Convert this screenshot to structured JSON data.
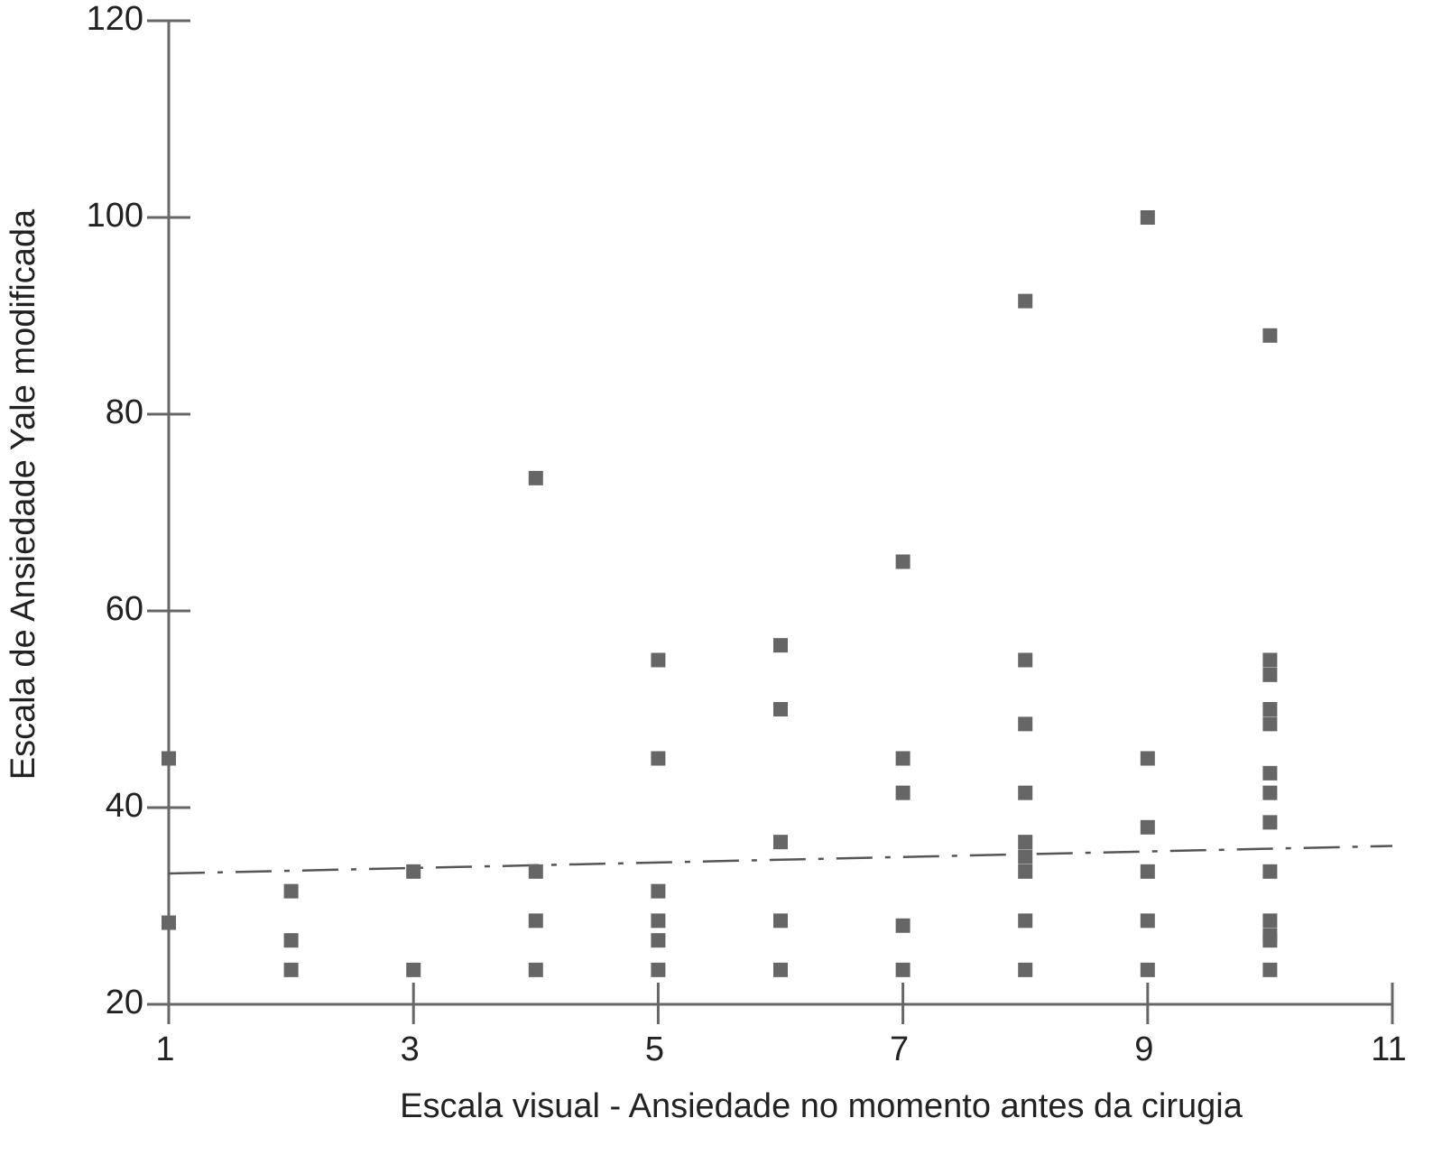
{
  "chart_data": {
    "type": "scatter",
    "xlabel": "Escala visual - Ansiedade no momento antes da cirugia",
    "ylabel": "Escala de Ansiedade Yale modificada",
    "xlim": [
      1,
      11
    ],
    "xticks": [
      1,
      3,
      5,
      7,
      9,
      11
    ],
    "ylim": [
      20,
      120
    ],
    "yticks": [
      20,
      40,
      60,
      80,
      100,
      120
    ],
    "series": [
      {
        "color": "#666666",
        "x": [
          1,
          1,
          2,
          2,
          2,
          3,
          3,
          4,
          4,
          4,
          4,
          5,
          5,
          5,
          5,
          5,
          5,
          6,
          6,
          6,
          6,
          6,
          7,
          7,
          7,
          7,
          7,
          8,
          8,
          8,
          8,
          8,
          8,
          8,
          8,
          8,
          9,
          9,
          9,
          9,
          9,
          9,
          10,
          10,
          10,
          10,
          10,
          10,
          10,
          10,
          10,
          10,
          10,
          10,
          10
        ],
        "y": [
          45,
          28.3,
          31.5,
          26.5,
          23.5,
          33.5,
          23.5,
          73.5,
          33.5,
          28.5,
          23.5,
          55,
          45,
          31.5,
          28.5,
          26.5,
          23.5,
          56.5,
          50,
          36.5,
          28.5,
          23.5,
          65,
          45,
          41.5,
          28,
          23.5,
          91.5,
          55,
          48.5,
          41.5,
          36.5,
          35,
          33.5,
          28.5,
          23.5,
          100,
          45,
          38,
          33.5,
          28.5,
          23.5,
          88,
          55,
          53.5,
          50,
          48.5,
          43.5,
          41.5,
          38.5,
          33.5,
          28.5,
          27,
          26.5,
          23.5
        ]
      }
    ],
    "trendline": {
      "color": "#555555",
      "x": [
        1,
        11
      ],
      "y": [
        33.3,
        36.1
      ]
    }
  }
}
